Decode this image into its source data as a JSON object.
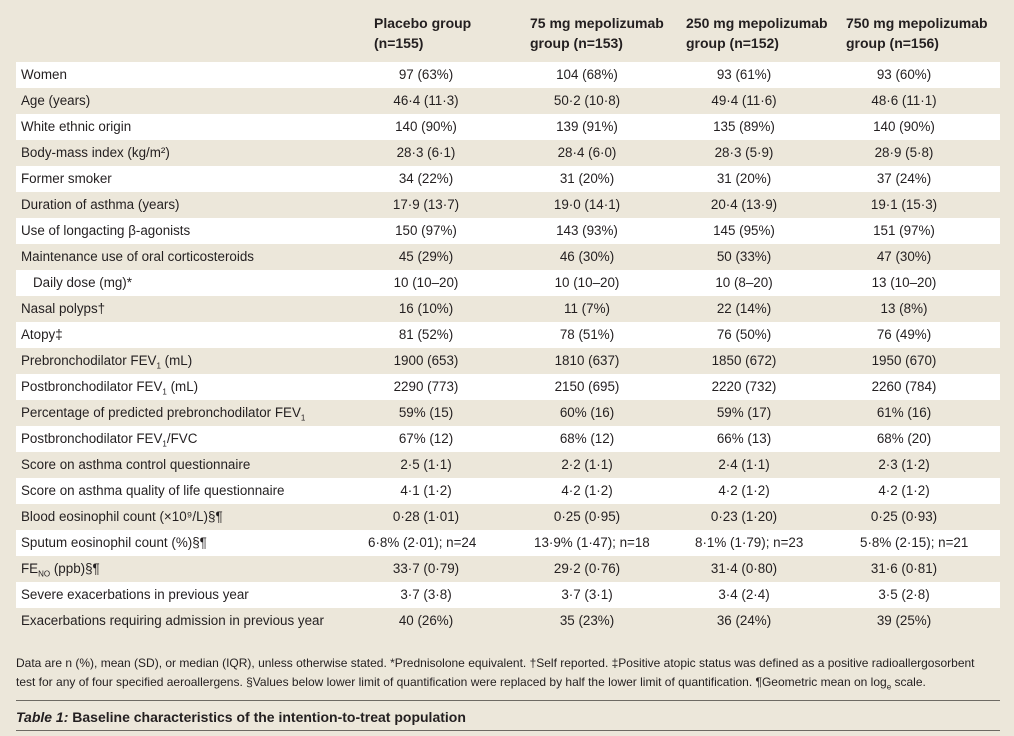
{
  "header": {
    "col1": [
      "Placebo group",
      "(n=155)"
    ],
    "col2": [
      "75 mg mepolizumab",
      "group (n=153)"
    ],
    "col3": [
      "250 mg mepolizumab",
      "group (n=152)"
    ],
    "col4": [
      "750 mg mepolizumab",
      "group (n=156)"
    ]
  },
  "rows": [
    {
      "label": "Women",
      "values": [
        "97 (63%)",
        "104 (68%)",
        "93 (61%)",
        "93 (60%)"
      ]
    },
    {
      "label": "Age (years)",
      "values": [
        "46·4 (11·3)",
        "50·2 (10·8)",
        "49·4 (11·6)",
        "48·6 (11·1)"
      ]
    },
    {
      "label": "White ethnic origin",
      "values": [
        "140 (90%)",
        "139 (91%)",
        "135 (89%)",
        "140 (90%)"
      ]
    },
    {
      "label": "Body-mass index (kg/m²)",
      "values": [
        "28·3 (6·1)",
        "28·4 (6·0)",
        "28·3 (5·9)",
        "28·9 (5·8)"
      ]
    },
    {
      "label": "Former smoker",
      "values": [
        "34 (22%)",
        "31 (20%)",
        "31 (20%)",
        "37 (24%)"
      ]
    },
    {
      "label": "Duration of asthma (years)",
      "values": [
        "17·9 (13·7)",
        "19·0 (14·1)",
        "20·4 (13·9)",
        "19·1 (15·3)"
      ]
    },
    {
      "label": "Use of longacting β-agonists",
      "values": [
        "150 (97%)",
        "143 (93%)",
        "145 (95%)",
        "151 (97%)"
      ]
    },
    {
      "label": "Maintenance use of oral corticosteroids",
      "values": [
        "45 (29%)",
        "46 (30%)",
        "50 (33%)",
        "47 (30%)"
      ]
    },
    {
      "label": "Daily dose (mg)*",
      "values": [
        "10 (10–20)",
        "10 (10–20)",
        "10 (8–20)",
        "13 (10–20)"
      ]
    },
    {
      "label": "Nasal polyps†",
      "values": [
        "16 (10%)",
        "11 (7%)",
        "22 (14%)",
        "13 (8%)"
      ]
    },
    {
      "label": "Atopy‡",
      "values": [
        "81 (52%)",
        "78 (51%)",
        "76 (50%)",
        "76 (49%)"
      ]
    },
    {
      "label_pre": "Prebronchodilator FEV",
      "label_sub": "1",
      "label_post": " (mL)",
      "values": [
        "1900 (653)",
        "1810 (637)",
        "1850 (672)",
        "1950 (670)"
      ]
    },
    {
      "label_pre": "Postbronchodilator FEV",
      "label_sub": "1",
      "label_post": " (mL)",
      "values": [
        "2290 (773)",
        "2150 (695)",
        "2220 (732)",
        "2260 (784)"
      ]
    },
    {
      "label_pre": "Percentage of predicted prebronchodilator FEV",
      "label_sub": "1",
      "label_post": "",
      "values": [
        "59% (15)",
        "60% (16)",
        "59% (17)",
        "61% (16)"
      ]
    },
    {
      "label_pre": "Postbronchodilator FEV",
      "label_sub": "1",
      "label_post": "/FVC",
      "values": [
        "67% (12)",
        "68% (12)",
        "66% (13)",
        "68% (20)"
      ]
    },
    {
      "label": "Score on asthma control questionnaire",
      "values": [
        "2·5 (1·1)",
        "2·2 (1·1)",
        "2·4 (1·1)",
        "2·3 (1·2)"
      ]
    },
    {
      "label": "Score on asthma quality of life questionnaire",
      "values": [
        "4·1 (1·2)",
        "4·2 (1·2)",
        "4·2 (1·2)",
        "4·2 (1·2)"
      ]
    },
    {
      "label": "Blood eosinophil count (×10⁹/L)§¶",
      "values": [
        "0·28 (1·01)",
        "0·25 (0·95)",
        "0·23 (1·20)",
        "0·25 (0·93)"
      ]
    },
    {
      "label": "Sputum eosinophil count (%)§¶",
      "values": [
        "6·8% (2·01); n=24",
        "13·9% (1·47); n=18",
        "8·1% (1·79); n=23",
        "5·8% (2·15); n=21"
      ]
    },
    {
      "label_pre": "FE",
      "label_sub": "NO",
      "label_post": " (ppb)§¶",
      "values": [
        "33·7 (0·79)",
        "29·2 (0·76)",
        "31·4 (0·80)",
        "31·6 (0·81)"
      ]
    },
    {
      "label": "Severe exacerbations in previous year",
      "values": [
        "3·7 (3·8)",
        "3·7 (3·1)",
        "3·4 (2·4)",
        "3·5 (2·8)"
      ]
    },
    {
      "label": "Exacerbations requiring admission in previous year",
      "values": [
        "40 (26%)",
        "35 (23%)",
        "36 (24%)",
        "39 (25%)"
      ]
    }
  ],
  "footnote": {
    "line1": "Data are n (%), mean (SD), or median (IQR), unless otherwise stated. *Prednisolone equivalent. †Self reported. ‡Positive atopic status was defined as a positive radioallergosorbent",
    "line2_pre": "test for any of four specified aeroallergens. §Values below lower limit of quantification were replaced by half the lower limit of quantification. ¶Geometric mean on log",
    "line2_sub": "e",
    "line2_post": " scale."
  },
  "caption": {
    "label": "Table 1:",
    "text": " Baseline characteristics of the intention-to-treat population"
  }
}
